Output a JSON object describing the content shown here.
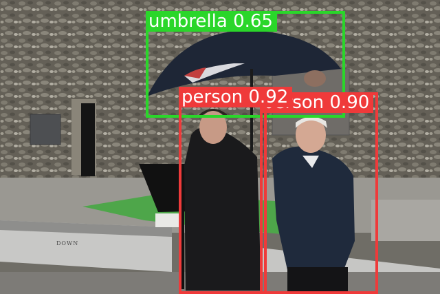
{
  "scene": {
    "wall_sign_text": "DOWN"
  },
  "detections": [
    {
      "label": "umbrella 0.65",
      "class": "umbrella",
      "score": 0.65,
      "color": "#2ad62a"
    },
    {
      "label": "person 0.92",
      "class": "person",
      "score": 0.92,
      "color": "#ef3a3a"
    },
    {
      "label": "person 0.90",
      "class": "person",
      "score": 0.9,
      "color": "#ef3a3a"
    }
  ]
}
